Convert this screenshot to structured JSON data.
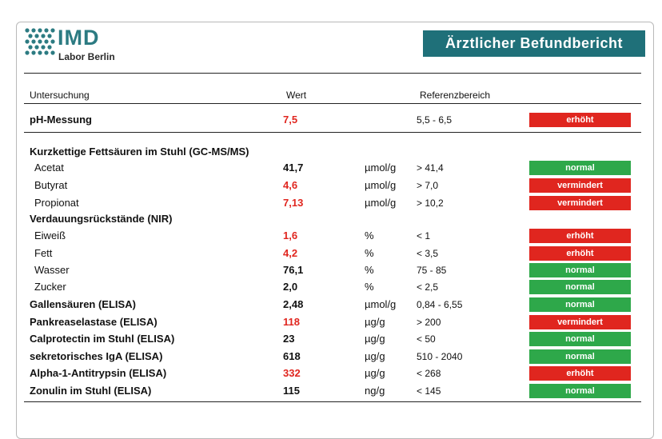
{
  "logo": {
    "name": "IMD",
    "subtitle": "Labor Berlin"
  },
  "report_title": "Ärztlicher Befundbericht",
  "headers": {
    "test": "Untersuchung",
    "value": "Wert",
    "range": "Referenzbereich"
  },
  "ph": {
    "name": "pH-Messung",
    "value": "7,5",
    "unit": "",
    "range": "5,5 - 6,5",
    "status": "erhöht"
  },
  "sections": {
    "scfa": "Kurzkettige Fettsäuren im Stuhl (GC-MS/MS)",
    "digest": "Verdauungsrückstände (NIR)"
  },
  "rows": [
    {
      "name": "Acetat",
      "value": "41,7",
      "unit": "µmol/g",
      "range": "> 41,4",
      "status": "normal"
    },
    {
      "name": "Butyrat",
      "value": "4,6",
      "unit": "µmol/g",
      "range": "> 7,0",
      "status": "vermindert"
    },
    {
      "name": "Propionat",
      "value": "7,13",
      "unit": "µmol/g",
      "range": "> 10,2",
      "status": "vermindert"
    },
    {
      "name": "Eiweiß",
      "value": "1,6",
      "unit": "%",
      "range": "< 1",
      "status": "erhöht"
    },
    {
      "name": "Fett",
      "value": "4,2",
      "unit": "%",
      "range": "< 3,5",
      "status": "erhöht"
    },
    {
      "name": "Wasser",
      "value": "76,1",
      "unit": "%",
      "range": "75 - 85",
      "status": "normal"
    },
    {
      "name": "Zucker",
      "value": "2,0",
      "unit": "%",
      "range": "< 2,5",
      "status": "normal"
    },
    {
      "name": "Gallensäuren (ELISA)",
      "value": "2,48",
      "unit": "µmol/g",
      "range": "0,84 - 6,55",
      "status": "normal"
    },
    {
      "name": "Pankreaselastase (ELISA)",
      "value": "118",
      "unit": "µg/g",
      "range": "> 200",
      "status": "vermindert"
    },
    {
      "name": "Calprotectin im Stuhl (ELISA)",
      "value": "23",
      "unit": "µg/g",
      "range": "< 50",
      "status": "normal"
    },
    {
      "name": "sekretorisches IgA (ELISA)",
      "value": "618",
      "unit": "µg/g",
      "range": "510 - 2040",
      "status": "normal"
    },
    {
      "name": "Alpha-1-Antitrypsin (ELISA)",
      "value": "332",
      "unit": "µg/g",
      "range": "< 268",
      "status": "erhöht"
    },
    {
      "name": "Zonulin im Stuhl (ELISA)",
      "value": "115",
      "unit": "ng/g",
      "range": "< 145",
      "status": "normal"
    }
  ],
  "colors": {
    "brand": "#1f7079",
    "high": "#e0261f",
    "normal": "#2ea84a"
  }
}
